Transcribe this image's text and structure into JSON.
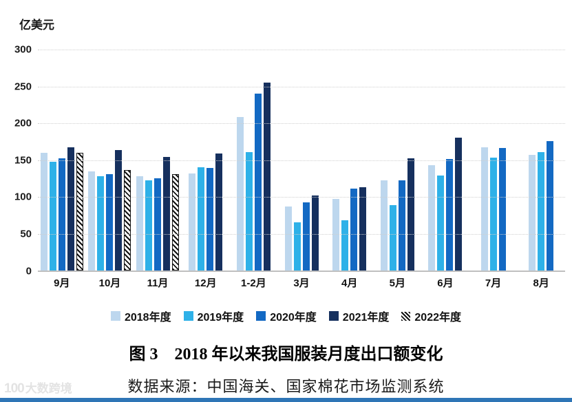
{
  "chart_data": {
    "type": "bar",
    "title": "图 3　2018 年以来我国服装月度出口额变化",
    "unit_label": "亿美元",
    "categories": [
      "9月",
      "10月",
      "11月",
      "12月",
      "1-2月",
      "3月",
      "4月",
      "5月",
      "6月",
      "7月",
      "8月"
    ],
    "series": [
      {
        "name": "2018年度",
        "color": "#bdd7ee",
        "pattern": "solid",
        "values": [
          160,
          135,
          128,
          132,
          208,
          87,
          97,
          122,
          143,
          167,
          157
        ]
      },
      {
        "name": "2019年度",
        "color": "#2eb1e8",
        "pattern": "solid",
        "values": [
          148,
          128,
          122,
          140,
          161,
          65,
          68,
          89,
          129,
          153,
          161
        ]
      },
      {
        "name": "2020年度",
        "color": "#1369c3",
        "pattern": "solid",
        "values": [
          152,
          131,
          125,
          139,
          240,
          93,
          111,
          122,
          151,
          166,
          176
        ]
      },
      {
        "name": "2021年度",
        "color": "#16305e",
        "pattern": "solid",
        "values": [
          167,
          164,
          154,
          159,
          255,
          102,
          113,
          152,
          180,
          null,
          null
        ]
      },
      {
        "name": "2022年度",
        "color": "#111111",
        "pattern": "diagonal-hatch",
        "values": [
          160,
          136,
          131,
          null,
          null,
          null,
          null,
          null,
          null,
          null,
          null
        ]
      }
    ],
    "ylim": [
      0,
      300
    ],
    "y_ticks": [
      0,
      50,
      100,
      150,
      200,
      250,
      300
    ],
    "grid": "horizontal-dotted",
    "legend_position": "bottom",
    "xlabel": "",
    "ylabel": "亿美元"
  },
  "caption": {
    "text": "图 3　2018 年以来我国服装月度出口额变化"
  },
  "source": {
    "text": "数据来源：中国海关、国家棉花市场监测系统"
  },
  "watermark": {
    "logo": "100",
    "text": "大数跨境"
  }
}
